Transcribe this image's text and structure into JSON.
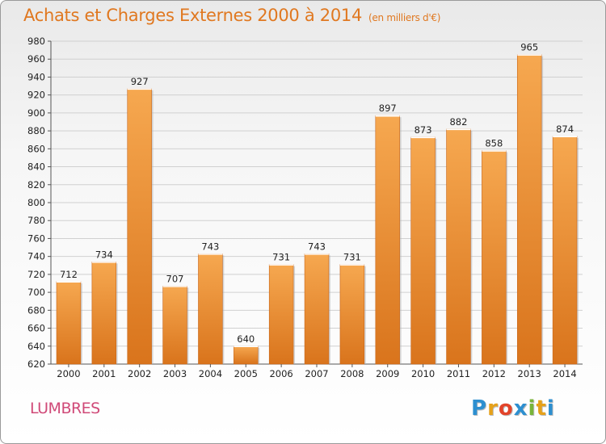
{
  "title": "Achats et Charges Externes 2000 à 2014",
  "subtitle": "(en milliers d'€)",
  "commune": "LUMBRES",
  "logo": {
    "letters": [
      "P",
      "r",
      "o",
      "x",
      "i",
      "t",
      "i"
    ],
    "colors": [
      "#2d8fd0",
      "#e6a11a",
      "#e2442a",
      "#2d8fd0",
      "#79b43a",
      "#e6a11a",
      "#2d8fd0"
    ]
  },
  "colors": {
    "bar_top": "#f6a850",
    "bar_bottom": "#d9741c",
    "title": "#e07820",
    "commune": "#d04a78"
  },
  "chart_data": {
    "type": "bar",
    "categories": [
      "2000",
      "2001",
      "2002",
      "2003",
      "2004",
      "2005",
      "2006",
      "2007",
      "2008",
      "2009",
      "2010",
      "2011",
      "2012",
      "2013",
      "2014"
    ],
    "values": [
      712,
      734,
      927,
      707,
      743,
      640,
      731,
      743,
      731,
      897,
      873,
      882,
      858,
      965,
      874
    ],
    "data_labels": [
      "712",
      "734",
      "927",
      "707",
      "743",
      "640",
      "731",
      "743",
      "731",
      "897",
      "873",
      "882",
      "858",
      "965",
      "874"
    ],
    "ylim": [
      620,
      980
    ],
    "yticks": [
      "620",
      "640",
      "660",
      "680",
      "700",
      "720",
      "740",
      "760",
      "780",
      "800",
      "820",
      "840",
      "860",
      "880",
      "900",
      "920",
      "940",
      "960",
      "980"
    ],
    "grid": true,
    "title": "Achats et Charges Externes 2000 à 2014",
    "xlabel": "",
    "ylabel": ""
  }
}
